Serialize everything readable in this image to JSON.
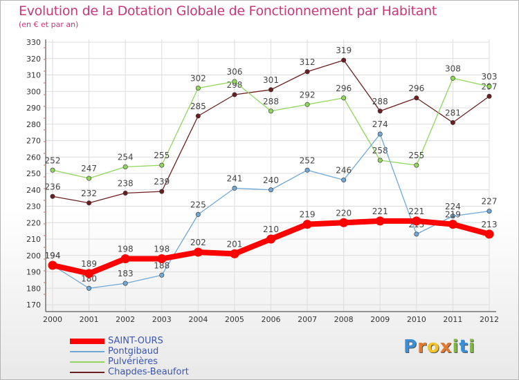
{
  "title": "Evolution de la Dotation Globale de Fonctionnement par Habitant",
  "subtitle": "(en € et par an)",
  "logo": {
    "letters": [
      "P",
      "r",
      "o",
      "x",
      "i",
      "t",
      "i"
    ],
    "colors": [
      "#3a8fd6",
      "#e8792b",
      "#f3c22a",
      "#e8792b",
      "#7dbb3c",
      "#3a8fd6",
      "#7dbb3c"
    ]
  },
  "chart_data": {
    "type": "line",
    "x": [
      2000,
      2001,
      2002,
      2003,
      2004,
      2005,
      2006,
      2007,
      2008,
      2009,
      2010,
      2011,
      2012
    ],
    "ylim": [
      170,
      330
    ],
    "yticks": [
      170,
      180,
      190,
      200,
      210,
      220,
      230,
      240,
      250,
      260,
      270,
      280,
      290,
      300,
      310,
      320,
      330
    ],
    "grid": true,
    "legend_position": "bottom-left",
    "series": [
      {
        "name": "Chapdes-Beaufort",
        "color": "#6b1e1e",
        "values": [
          236,
          232,
          238,
          239,
          285,
          298,
          301,
          312,
          319,
          288,
          296,
          281,
          297
        ]
      },
      {
        "name": "Pulvérières",
        "color": "#8fd65b",
        "values": [
          252,
          247,
          254,
          255,
          302,
          306,
          288,
          292,
          296,
          258,
          255,
          308,
          303
        ]
      },
      {
        "name": "Pontgibaud",
        "color": "#6fa8d6",
        "values": [
          194,
          180,
          183,
          188,
          225,
          241,
          240,
          252,
          246,
          274,
          213,
          224,
          227
        ]
      },
      {
        "name": "SAINT-OURS",
        "color": "#ff0000",
        "values": [
          194,
          189,
          198,
          198,
          202,
          201,
          210,
          219,
          220,
          221,
          221,
          219,
          213
        ]
      }
    ],
    "legend_order": [
      "SAINT-OURS",
      "Pontgibaud",
      "Pulvérières",
      "Chapdes-Beaufort"
    ]
  }
}
